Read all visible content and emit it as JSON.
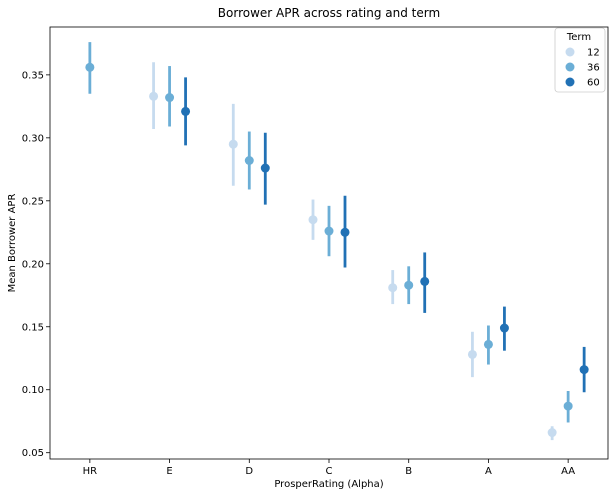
{
  "chart_data": {
    "type": "scatter",
    "title": "Borrower APR across rating and term",
    "xlabel": "ProsperRating (Alpha)",
    "ylabel": "Mean Borrower APR",
    "categories": [
      "HR",
      "E",
      "D",
      "C",
      "B",
      "A",
      "AA"
    ],
    "ylim": [
      0.045,
      0.388
    ],
    "yticks": [
      0.05,
      0.1,
      0.15,
      0.2,
      0.25,
      0.3,
      0.35
    ],
    "ytick_labels": [
      "0.05",
      "0.10",
      "0.15",
      "0.20",
      "0.25",
      "0.30",
      "0.35"
    ],
    "grid": false,
    "legend": {
      "title": "Term",
      "placement": "top-right"
    },
    "series": [
      {
        "name": "12",
        "color": "#c6dbef",
        "values": [
          null,
          0.333,
          0.295,
          0.235,
          0.181,
          0.128,
          0.066
        ],
        "ci_low": [
          null,
          0.307,
          0.262,
          0.219,
          0.168,
          0.11,
          0.06
        ],
        "ci_high": [
          null,
          0.36,
          0.327,
          0.251,
          0.195,
          0.146,
          0.071
        ]
      },
      {
        "name": "36",
        "color": "#6baed6",
        "values": [
          0.356,
          0.332,
          0.282,
          0.226,
          0.183,
          0.136,
          0.087
        ],
        "ci_low": [
          0.335,
          0.309,
          0.259,
          0.206,
          0.168,
          0.12,
          0.074
        ],
        "ci_high": [
          0.376,
          0.357,
          0.305,
          0.246,
          0.198,
          0.151,
          0.099
        ]
      },
      {
        "name": "60",
        "color": "#2171b5",
        "values": [
          null,
          0.321,
          0.276,
          0.225,
          0.186,
          0.149,
          0.116
        ],
        "ci_low": [
          null,
          0.294,
          0.247,
          0.197,
          0.161,
          0.131,
          0.098
        ],
        "ci_high": [
          null,
          0.348,
          0.304,
          0.254,
          0.209,
          0.166,
          0.134
        ]
      }
    ]
  }
}
